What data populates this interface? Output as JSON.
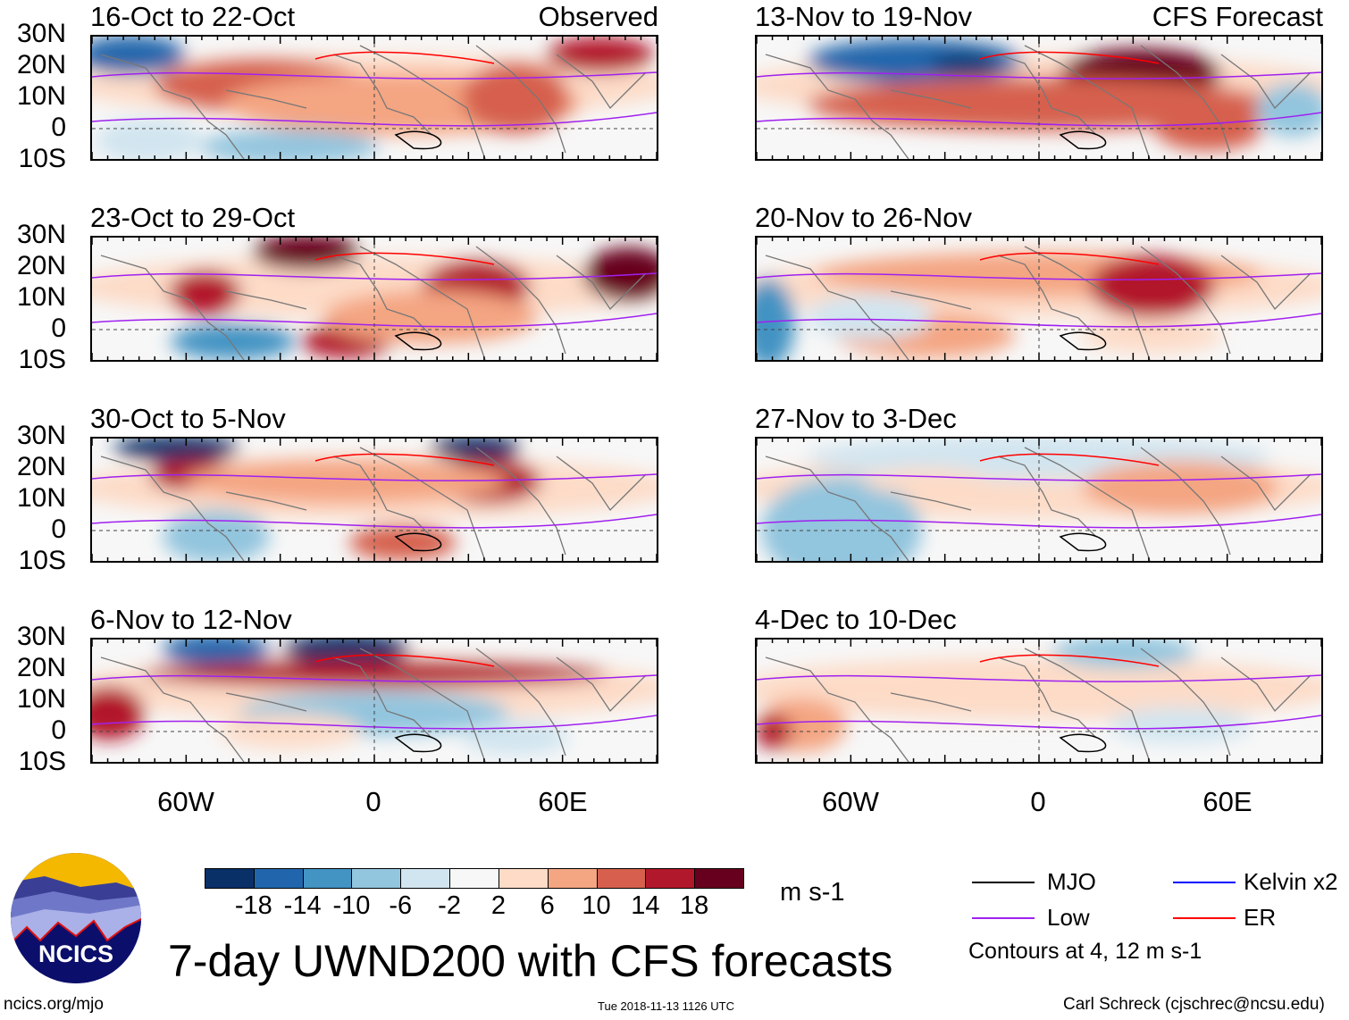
{
  "panels": {
    "left": [
      {
        "title": "16-Oct to 22-Oct",
        "tag": "Observed"
      },
      {
        "title": "23-Oct to 29-Oct"
      },
      {
        "title": "30-Oct to 5-Nov"
      },
      {
        "title": "6-Nov to 12-Nov"
      }
    ],
    "right": [
      {
        "title": "13-Nov to 19-Nov",
        "tag": "CFS Forecast"
      },
      {
        "title": "20-Nov to 26-Nov"
      },
      {
        "title": "27-Nov to 3-Dec"
      },
      {
        "title": "4-Dec to 10-Dec"
      }
    ]
  },
  "lat_labels": [
    "30N",
    "20N",
    "10N",
    "0",
    "10S"
  ],
  "lon_labels": [
    "60W",
    "0",
    "60E"
  ],
  "colorbar": {
    "colors": [
      "#0a3068",
      "#2166ac",
      "#4393c3",
      "#92c5de",
      "#d1e5f0",
      "#f7f7f7",
      "#fddbc7",
      "#f4a582",
      "#d6604d",
      "#b2182b",
      "#67001f"
    ],
    "labels": [
      "-18",
      "-14",
      "-10",
      "-6",
      "-2",
      "2",
      "6",
      "10",
      "14",
      "18"
    ],
    "units": "m s-1"
  },
  "legend": {
    "items": [
      {
        "label": "MJO",
        "color": "#000000"
      },
      {
        "label": "Kelvin x2",
        "color": "#0000ff"
      },
      {
        "label": "Low",
        "color": "#a020f0"
      },
      {
        "label": "ER",
        "color": "#ff0000"
      }
    ],
    "note": "Contours at 4, 12 m s-1"
  },
  "title": "7-day UWND200 with CFS forecasts",
  "logo_text": "NCICS",
  "footer": {
    "left": "ncics.org/mjo",
    "center": "Tue 2018-11-13 1126 UTC",
    "right": "Carl Schreck (cjschrec@ncsu.edu)"
  }
}
